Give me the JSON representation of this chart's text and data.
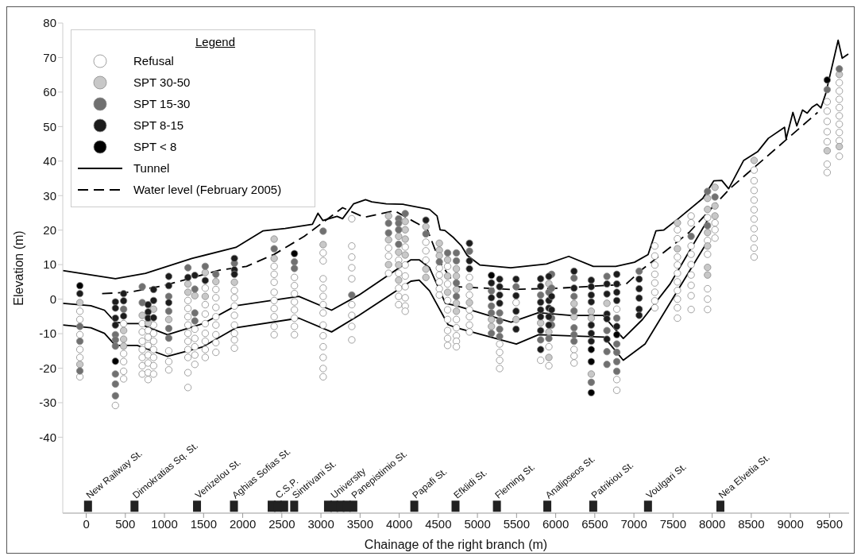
{
  "chart_data": {
    "type": "scatter",
    "xlabel": "Chainage of the right branch (m)",
    "ylabel": "Elevation (m)",
    "legend_title": "Legend",
    "legend": "top left",
    "xlim": [
      -300,
      9750
    ],
    "ylim": [
      -62,
      80
    ],
    "xticks": [
      0,
      500,
      1000,
      1500,
      2000,
      2500,
      3000,
      3500,
      4000,
      4500,
      5000,
      5500,
      6000,
      6500,
      7000,
      7500,
      8000,
      8500,
      9000,
      9500
    ],
    "yticks": [
      -40,
      -30,
      -20,
      -10,
      0,
      10,
      20,
      30,
      40,
      50,
      60,
      70,
      80
    ],
    "series": [
      {
        "type": "line",
        "color": "#000000",
        "line_style": "solid",
        "x": [
          -298,
          373,
          758,
          1350,
          1913,
          2262,
          2543,
          2891,
          2962,
          3024,
          3206,
          3276,
          3416,
          3570,
          3650,
          3835,
          4045,
          4388,
          4484,
          4523,
          4584,
          4696,
          4797,
          4869,
          5030,
          5426,
          5882,
          6167,
          6481,
          6768,
          7008,
          7181,
          7282,
          7380,
          7566,
          7880,
          8022,
          8123,
          8211,
          8403,
          8580,
          8718,
          8925,
          8945,
          9032,
          9082,
          9155,
          9215,
          9277,
          9340,
          9390,
          9452,
          9610,
          9662,
          9740
        ],
        "values": [
          8.3,
          5.9,
          7.5,
          11.8,
          15,
          19.8,
          20.5,
          21.7,
          24.9,
          22.8,
          24,
          23.3,
          27.6,
          28.8,
          28.2,
          27.6,
          27.5,
          26,
          24.1,
          20.1,
          19.9,
          17.8,
          15.4,
          12.7,
          9.9,
          9.1,
          10.2,
          12.4,
          9.5,
          9.5,
          10.7,
          12.9,
          19.8,
          20,
          23.3,
          29.2,
          34.3,
          34.4,
          32,
          40.2,
          42.7,
          46.6,
          49.8,
          46.4,
          54.1,
          50.2,
          54.8,
          53.9,
          55.6,
          56.5,
          55.4,
          59.6,
          75,
          69.8,
          71
        ]
      },
      {
        "type": "line",
        "name": "Tunnel",
        "color": "#000000",
        "line_style": "solid",
        "x": [
          -298,
          59,
          233,
          373,
          513,
          670,
          1038,
          1493,
          1913,
          2717,
          3136,
          3486,
          4150,
          4255,
          4388,
          4591,
          4731,
          5430,
          5781,
          6197,
          6607,
          6864,
          7109,
          7459,
          7950
        ],
        "values": [
          -1.2,
          -1.9,
          -3.2,
          -6.7,
          -7.1,
          -7.1,
          -10.3,
          -7.1,
          -1.9,
          0.8,
          -3.2,
          1.2,
          11.4,
          11.4,
          9.1,
          -1.2,
          -1.9,
          -6.7,
          -3.9,
          -4.7,
          -4.7,
          -11.4,
          -5.9,
          4.3,
          23.2
        ]
      },
      {
        "type": "line",
        "color": "#000000",
        "line_style": "solid",
        "x": [
          -298,
          59,
          233,
          373,
          653,
          1038,
          1493,
          1913,
          2717,
          3136,
          3486,
          4150,
          4255,
          4388,
          4625,
          4731,
          5497,
          5781,
          6620,
          6864,
          7143,
          7948
        ],
        "values": [
          -7.5,
          -8.3,
          -9.9,
          -13.4,
          -13.4,
          -16.6,
          -13.8,
          -8.3,
          -5.5,
          -9.5,
          -4.7,
          5.2,
          5.5,
          2.4,
          -7.4,
          -8.3,
          -13,
          -10.3,
          -11,
          -17.7,
          -13,
          17
        ]
      },
      {
        "type": "line",
        "name": "Water level (February 2005)",
        "color": "#000000",
        "line_style": "dashed",
        "x": [
          203,
          548,
          1004,
          1704,
          2049,
          2404,
          2787,
          3276,
          3556,
          3941,
          4186,
          4250,
          4361,
          4521,
          4731,
          5430,
          6060,
          6897,
          7110,
          7704,
          8225,
          9348
        ],
        "values": [
          1.6,
          2,
          4,
          8.4,
          9.5,
          13,
          18.2,
          26.5,
          23.7,
          25.6,
          22.5,
          21.7,
          20.1,
          10.7,
          3.6,
          2.8,
          3.2,
          4.3,
          8.7,
          19.3,
          32,
          54.1
        ]
      },
      {
        "type": "scatter",
        "name": "Refusal",
        "color": "#ffffff",
        "marker": "circle",
        "x": [
          -81,
          -81,
          -81,
          -81,
          -81,
          -81,
          373,
          478,
          478,
          478,
          478,
          478,
          716,
          716,
          716,
          716,
          716,
          716,
          716,
          791,
          791,
          791,
          791,
          791,
          791,
          791,
          861,
          861,
          861,
          861,
          861,
          861,
          861,
          1055,
          1055,
          1055,
          1300,
          1300,
          1300,
          1300,
          1300,
          1300,
          1300,
          1300,
          1300,
          1300,
          1388,
          1388,
          1388,
          1388,
          1388,
          1521,
          1521,
          1521,
          1521,
          1521,
          1521,
          1521,
          1521,
          1657,
          1657,
          1657,
          1657,
          1657,
          1657,
          1657,
          1657,
          1894,
          1894,
          1894,
          1894,
          1894,
          1894,
          1894,
          1894,
          2402,
          2402,
          2402,
          2402,
          2402,
          2402,
          2402,
          2402,
          2402,
          2661,
          2661,
          2661,
          2661,
          2661,
          2661,
          2661,
          2661,
          3028,
          3028,
          3028,
          3028,
          3028,
          3028,
          3028,
          3028,
          3028,
          3028,
          3028,
          3028,
          3028,
          3394,
          3394,
          3394,
          3394,
          3394,
          3394,
          3394,
          3394,
          3394,
          3864,
          3864,
          3864,
          3993,
          3993,
          3993,
          3993,
          3993,
          4077,
          4077,
          4077,
          4077,
          4077,
          4077,
          4077,
          4341,
          4341,
          4341,
          4513,
          4513,
          4513,
          4513,
          4513,
          4619,
          4619,
          4619,
          4619,
          4619,
          4619,
          4619,
          4619,
          4731,
          4731,
          4731,
          4731,
          4731,
          4898,
          4898,
          4898,
          4898,
          4898,
          4898,
          5284,
          5284,
          5284,
          5284,
          5494,
          5808,
          5913,
          5913,
          6235,
          6235,
          6235,
          6781,
          6781,
          6781,
          7267,
          7267,
          7267,
          7267,
          7267,
          7267,
          7267,
          7267,
          7556,
          7556,
          7556,
          7556,
          7556,
          7556,
          7556,
          7556,
          7556,
          7556,
          7731,
          7731,
          7731,
          7731,
          7731,
          7731,
          7731,
          7731,
          7731,
          7941,
          7941,
          7941,
          7941,
          7941,
          7941,
          8036,
          8036,
          8036,
          8536,
          8536,
          8536,
          8536,
          8536,
          8536,
          8536,
          8536,
          8536,
          8536,
          9470,
          9470,
          9470,
          9470,
          9470,
          9470,
          9470,
          9625,
          9625,
          9625,
          9625,
          9625,
          9625,
          9625,
          9625,
          9625
        ],
        "values": [
          -3.5,
          -5.9,
          -10.3,
          -14.6,
          -16.9,
          -22.5,
          -30.8,
          -7.1,
          -15.8,
          -18.1,
          -20.9,
          -23.1,
          -7.1,
          -9.5,
          -12.2,
          -14.6,
          -16.9,
          -19.3,
          -21.7,
          -9.1,
          -11,
          -13.4,
          -16.2,
          -18.5,
          -21.3,
          -23.3,
          -7.5,
          -9.9,
          -12.2,
          -14.6,
          -16.9,
          -19.3,
          -21.7,
          -15,
          -18.1,
          -20.5,
          -0.4,
          -2.7,
          -5.1,
          -7.5,
          -9.9,
          -12.2,
          -14.6,
          -16.9,
          -21.3,
          -25.6,
          -8.7,
          -11.4,
          -13.8,
          -16.2,
          -18.9,
          3.2,
          -1.6,
          -4.3,
          -7.1,
          -9.9,
          -12.2,
          -14.6,
          -16.9,
          2.8,
          0.4,
          -2.4,
          -5.1,
          -7.5,
          -10.3,
          -12.6,
          -15.4,
          2.5,
          0.4,
          -2,
          -4.7,
          -7.5,
          -9.9,
          -11.8,
          -14.2,
          9.5,
          7.2,
          4.9,
          2,
          -0.4,
          -2.7,
          -5.1,
          -7.9,
          -10.3,
          6.3,
          3.9,
          1.6,
          -0.8,
          -3.1,
          -5.5,
          -7.9,
          -10.3,
          13.4,
          11.1,
          5.9,
          3.2,
          0.8,
          -1.6,
          -4,
          -7.5,
          -10.6,
          -13.8,
          -16.9,
          -20.1,
          -22.5,
          23.3,
          15.4,
          12.2,
          9.1,
          5.9,
          -1.6,
          -4.7,
          -7.9,
          -11.8,
          14.8,
          12.5,
          7.5,
          11.3,
          7.5,
          3.2,
          0.8,
          -1.6,
          15.1,
          9.9,
          6.7,
          3.6,
          0.4,
          -2,
          -3.5,
          16.5,
          14,
          11.3,
          9,
          7,
          5,
          3,
          1.2,
          9.5,
          4.4,
          -0.4,
          -3.1,
          -5.9,
          -9.1,
          -11.4,
          -13.4,
          -5.9,
          -8.3,
          -10.6,
          -12.2,
          -13.8,
          6.3,
          1.2,
          -3.1,
          -5.1,
          -7.5,
          -9.5,
          -13,
          -15.4,
          -17.7,
          -20.1,
          -1,
          -17.7,
          -13.8,
          -19.3,
          -14.6,
          -16.5,
          -18.5,
          -2.9,
          -23.3,
          -26.4,
          15.4,
          12.5,
          9.9,
          7.2,
          4.7,
          2,
          -0.5,
          -2.5,
          20.1,
          17.5,
          12.2,
          9.9,
          7.5,
          5,
          2.5,
          0,
          -2.5,
          -5.5,
          24.1,
          22.1,
          15.4,
          13,
          10,
          7,
          4,
          1,
          -3,
          23.6,
          17,
          13,
          3,
          0,
          -3,
          22.1,
          20.1,
          17.7,
          37.4,
          34.3,
          31.5,
          28.7,
          25.9,
          23.2,
          20.4,
          17.6,
          14.8,
          12.2,
          57.2,
          54.5,
          51.5,
          48.5,
          45.6,
          39.1,
          36.7,
          62.7,
          60.3,
          57.9,
          55.5,
          53.1,
          50.7,
          48.3,
          45.9,
          41.4
        ]
      },
      {
        "type": "scatter",
        "name": "SPT 30-50",
        "color": "#c8c8c8",
        "marker": "circle",
        "x": [
          -81,
          -81,
          478,
          478,
          478,
          716,
          791,
          861,
          1055,
          1300,
          1300,
          1388,
          1521,
          1521,
          1657,
          1894,
          2402,
          2402,
          3028,
          3864,
          3864,
          3864,
          3993,
          3993,
          3993,
          3993,
          4077,
          4077,
          4077,
          4077,
          4341,
          4341,
          4341,
          4513,
          4513,
          4513,
          4619,
          4619,
          4619,
          4731,
          4731,
          4731,
          4731,
          4731,
          4898,
          4898,
          5179,
          5179,
          5494,
          5808,
          5913,
          5913,
          5913,
          6235,
          6235,
          6455,
          6455,
          6455,
          6655,
          7556,
          7556,
          7941,
          7941,
          7941,
          7941,
          7941,
          7941,
          8036,
          8036,
          8036,
          8536,
          9470,
          9625,
          9625
        ],
        "values": [
          -1,
          -18.9,
          -9.1,
          -11.6,
          -13.6,
          -4.7,
          -6.9,
          -2.9,
          -5.9,
          4.4,
          2,
          1,
          7.7,
          0.8,
          5.1,
          4.9,
          17.4,
          11.8,
          15.8,
          24.1,
          17.2,
          10,
          18.2,
          13.6,
          9.9,
          5.5,
          22.5,
          20.1,
          17.4,
          12.8,
          21,
          8.7,
          6.3,
          16.2,
          14.2,
          12.6,
          11.4,
          6.7,
          2,
          8.8,
          6.7,
          2.8,
          -1.2,
          -3.5,
          3.6,
          -1,
          -5.9,
          -7.9,
          -5.9,
          -6.9,
          4.5,
          -9.5,
          -16.9,
          -1.3,
          -5.1,
          -3.5,
          -5.5,
          -21.7,
          -1.2,
          22.1,
          14.6,
          29.2,
          26,
          19.3,
          15.4,
          9.2,
          7,
          32.4,
          27,
          24.1,
          40.2,
          43,
          65.1,
          44.2
        ]
      },
      {
        "type": "scatter",
        "name": "SPT 15-30",
        "color": "#707070",
        "marker": "circle",
        "x": [
          -81,
          -81,
          -81,
          373,
          373,
          373,
          373,
          373,
          373,
          478,
          716,
          716,
          1055,
          1055,
          1055,
          1055,
          1300,
          1388,
          1388,
          1388,
          1521,
          1657,
          1894,
          2402,
          2661,
          2661,
          3028,
          3394,
          3864,
          3864,
          3993,
          3993,
          3993,
          3993,
          4077,
          4341,
          4513,
          4619,
          4731,
          4731,
          4731,
          4731,
          4898,
          5179,
          5179,
          5179,
          5179,
          5284,
          5284,
          5284,
          5284,
          5494,
          5808,
          5808,
          5913,
          5913,
          5948,
          5948,
          5948,
          5948,
          6235,
          6235,
          6235,
          6235,
          6235,
          6235,
          6455,
          6655,
          6655,
          6655,
          6655,
          6781,
          6781,
          6781,
          6781,
          6781,
          7067,
          7731,
          7941,
          7941,
          8036,
          9470,
          9625
        ],
        "values": [
          -7.9,
          -12.2,
          -20.8,
          -10.3,
          -11.8,
          -13.6,
          -21.7,
          -24.6,
          -28,
          -2.9,
          3.6,
          -1,
          0.8,
          -3.5,
          -8.5,
          -11.3,
          9.1,
          2.9,
          -4,
          -6.3,
          9.5,
          7.2,
          10.4,
          14.6,
          10.8,
          8.9,
          19.7,
          1.2,
          22,
          19.2,
          23.3,
          22,
          20.1,
          15.9,
          24.8,
          18.9,
          10.8,
          13.4,
          13.4,
          11.1,
          4.7,
          0.8,
          13.9,
          2.4,
          -2,
          -4,
          -9.9,
          -4,
          -6.3,
          -8.7,
          -10.8,
          3.6,
          1.2,
          -11.8,
          2,
          -11.4,
          7.2,
          3.2,
          -5.5,
          -7.5,
          6.1,
          0.8,
          -3.4,
          -8.3,
          -10.3,
          -12.2,
          -24.1,
          6.6,
          -9.1,
          -15.2,
          -18.9,
          -5.5,
          -13,
          -15.4,
          -18.1,
          -20.9,
          8.1,
          18.2,
          31.2,
          21.3,
          29.6,
          60.7,
          66.7
        ]
      },
      {
        "type": "scatter",
        "name": "SPT 8-15",
        "color": "#1c1c1c",
        "marker": "circle",
        "x": [
          -81,
          373,
          373,
          373,
          373,
          478,
          478,
          478,
          791,
          791,
          791,
          861,
          861,
          861,
          1055,
          1055,
          1055,
          1300,
          1388,
          1521,
          1894,
          1894,
          1894,
          4341,
          4898,
          4898,
          4898,
          5179,
          5179,
          5284,
          5284,
          5284,
          5284,
          5494,
          5494,
          5494,
          5494,
          5808,
          5808,
          5808,
          5808,
          5808,
          5808,
          5808,
          5913,
          5913,
          5913,
          5913,
          5913,
          5948,
          5948,
          6235,
          6235,
          6455,
          6455,
          6455,
          6455,
          6455,
          6455,
          6455,
          6655,
          6655,
          6655,
          6655,
          6655,
          6781,
          6781,
          6781,
          6781,
          6781,
          7067,
          7067,
          7067,
          7067,
          7067
        ],
        "values": [
          1.6,
          -0.8,
          -2.6,
          -5.5,
          -7.5,
          1.6,
          -0.5,
          -4.9,
          -1.6,
          -3.7,
          -5.5,
          2.8,
          -0.4,
          -5.4,
          6.6,
          3.9,
          -1,
          6.3,
          6.9,
          5.4,
          11.8,
          8.5,
          7.2,
          22.9,
          16.2,
          11.1,
          8.8,
          4.7,
          0.4,
          5.8,
          3.6,
          1.2,
          -1.2,
          5.8,
          1,
          -3.5,
          -8.7,
          5.9,
          3.7,
          -0.9,
          -3.1,
          -5.1,
          -9.1,
          -14.6,
          6.6,
          -0.4,
          -2.6,
          -5.1,
          -7.5,
          0.8,
          -3.1,
          8.1,
          3.2,
          5.5,
          3.6,
          1.2,
          -0.8,
          -7.5,
          -9.9,
          -12.2,
          4.4,
          1.5,
          -4.3,
          -5.7,
          -11.6,
          7.2,
          4.4,
          2,
          -0.4,
          -7.9,
          5.8,
          3,
          0.3,
          -2.9,
          -4.7
        ]
      },
      {
        "type": "scatter",
        "name": "SPT < 8",
        "color": "#000000",
        "marker": "circle",
        "x": [
          -81,
          373,
          2661,
          5179,
          6455,
          6455,
          6455,
          6781,
          9470
        ],
        "values": [
          3.9,
          -18,
          13.2,
          6.9,
          -14.6,
          -18.1,
          -27.1,
          -10.3,
          63.5
        ]
      },
      {
        "type": "scatter",
        "color": "#222222",
        "marker": "square",
        "x": [
          23,
          617,
          1416,
          1888,
          2370,
          2450,
          2530,
          2658,
          3090,
          3170,
          3250,
          3330,
          3414,
          4193,
          4720,
          5249,
          5893,
          6480,
          7180,
          8105
        ],
        "values": [
          -60,
          -60,
          -60,
          -60,
          -60,
          -60,
          -60,
          -60,
          -60,
          -60,
          -60,
          -60,
          -60,
          -60,
          -60,
          -60,
          -60,
          -60,
          -60,
          -60
        ]
      }
    ],
    "annotations": [
      {
        "text": "New Railway St.",
        "x": 23,
        "y": -60
      },
      {
        "text": "Dimokratias Sq. St.",
        "x": 617,
        "y": -60
      },
      {
        "text": "Venizelou St.",
        "x": 1416,
        "y": -60
      },
      {
        "text": "Aghias Sofias St.",
        "x": 1888,
        "y": -60
      },
      {
        "text": "C.S.P.",
        "x": 2440,
        "y": -60
      },
      {
        "text": "Sintrivani St.",
        "x": 2658,
        "y": -60
      },
      {
        "text": "University",
        "x": 3150,
        "y": -60
      },
      {
        "text": "Panepistimio St.",
        "x": 3414,
        "y": -60
      },
      {
        "text": "Papafi St.",
        "x": 4193,
        "y": -60
      },
      {
        "text": "Efklidi St.",
        "x": 4720,
        "y": -60
      },
      {
        "text": "Fleming St.",
        "x": 5249,
        "y": -60
      },
      {
        "text": "Analipseos St.",
        "x": 5893,
        "y": -60
      },
      {
        "text": "Patrikiou St.",
        "x": 6480,
        "y": -60
      },
      {
        "text": "Voulgari St.",
        "x": 7180,
        "y": -60
      },
      {
        "text": "Nea Elvetia St.",
        "x": 8105,
        "y": -60
      }
    ]
  }
}
